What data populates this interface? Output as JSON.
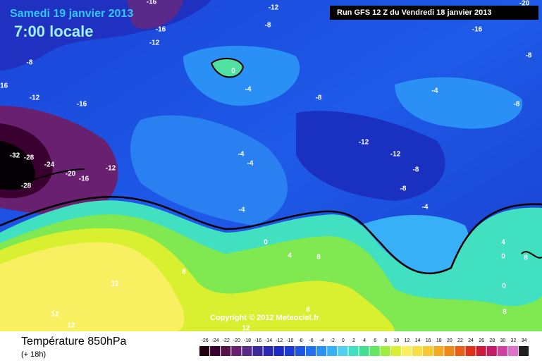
{
  "header": {
    "date": "Samedi 19 janvier 2013",
    "time": "7:00 locale",
    "run": "Run GFS 12 Z du Vendredi 18 janvier 2013"
  },
  "copyright": "Copyright © 2012 Meteociel.fr",
  "footer": {
    "title": "Température 850hPa",
    "lead": "(+ 18h)"
  },
  "isotherm_labels": [
    -16,
    -12,
    -8,
    -16,
    -16,
    -12,
    -8,
    -8,
    0,
    -4,
    -12,
    -16,
    -8,
    -4,
    -8,
    -12,
    -12,
    -32,
    -28,
    -24,
    -20,
    -16,
    -12,
    -4,
    -4,
    -8,
    -28,
    -8,
    -4,
    -4,
    0,
    4,
    4,
    8,
    8,
    0,
    8,
    0,
    12,
    8,
    8,
    12,
    12,
    12,
    -16,
    -20
  ],
  "legend": {
    "ticks": [
      -26,
      -24,
      -22,
      -20,
      -18,
      -16,
      -14,
      -12,
      -10,
      -8,
      -6,
      -4,
      -2,
      0,
      2,
      4,
      6,
      8,
      10,
      12,
      14,
      16,
      18,
      20,
      22,
      24,
      26,
      28,
      30,
      32,
      34
    ],
    "colors": [
      "#200010",
      "#3a0030",
      "#55104a",
      "#6a2070",
      "#5a2a8a",
      "#3a2a9a",
      "#2a2ab0",
      "#1c28c8",
      "#1a3ad8",
      "#1d55e8",
      "#2070f0",
      "#2a90f5",
      "#38b0f8",
      "#50d0f0",
      "#40e0c0",
      "#40e090",
      "#60e860",
      "#a0ec40",
      "#d8f030",
      "#f8f060",
      "#f8e040",
      "#f8c830",
      "#f8a820",
      "#f08818",
      "#e86018",
      "#e03018",
      "#d01838",
      "#c81868",
      "#d040a0",
      "#e070c8",
      "#202020"
    ]
  }
}
